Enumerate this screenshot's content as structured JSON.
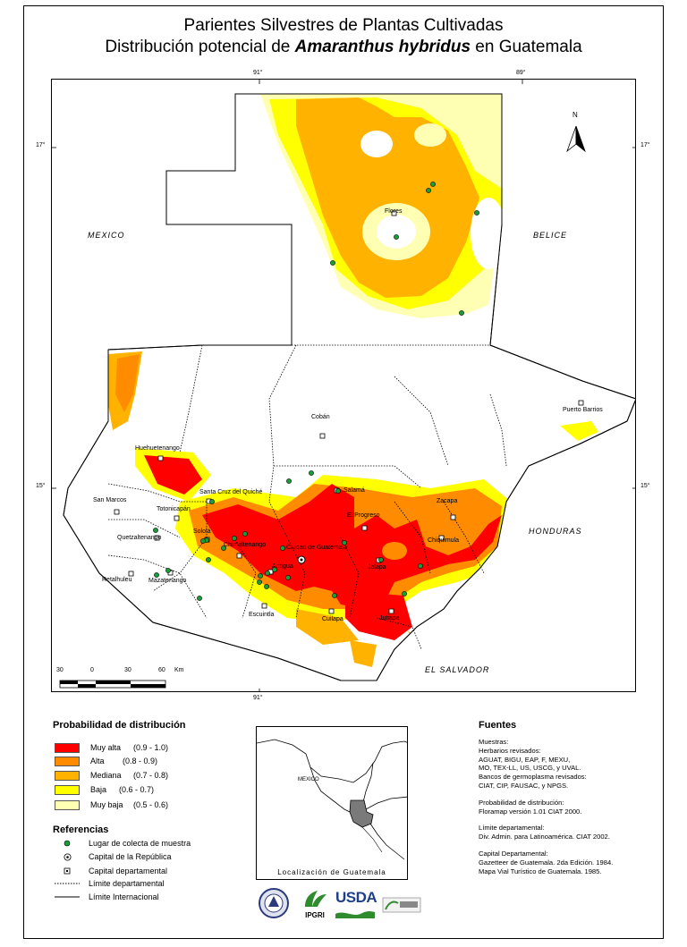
{
  "title": {
    "line1": "Parientes Silvestres de Plantas Cultivadas",
    "line2_prefix": "Distribución potencial de",
    "line2_species": "Amaranthus hybridus",
    "line2_suffix": "en Guatemala"
  },
  "graticule": {
    "lon_top_left": "91°",
    "lon_top_right": "89°",
    "lon_bottom": "91°",
    "lat_upper_left": "17°",
    "lat_upper_right": "17°",
    "lat_lower_left": "15°",
    "lat_lower_right": "15°"
  },
  "countries": {
    "mexico": "MEXICO",
    "belice": "BELICE",
    "honduras": "HONDURAS",
    "el_salvador": "EL SALVADOR"
  },
  "places": {
    "flores": "Flores",
    "coban": "Cobán",
    "puerto_barrios": "Puerto Barrios",
    "huehuetenango": "Huehuetenango",
    "san_marcos": "San Marcos",
    "santa_cruz": "Santa Cruz del Quiché",
    "salama": "Salamá",
    "totonicapan": "Totonicapán",
    "progreso": "El Progreso",
    "zacapa": "Zacapa",
    "quetzaltenango": "Quetzaltenango",
    "solola": "Sololá",
    "chimaltenango": "Chimaltenango",
    "ciudad_guatemala": "Ciudad de Guatemala",
    "chiquimula": "Chiquimula",
    "retalhuleu": "Retalhuleu",
    "mazatenango": "Mazatenango",
    "antigua": "Antigua",
    "jalapa": "Jalapa",
    "escuintla": "Escuintla",
    "cuilapa": "Cuilapa",
    "jutiapa": "Jutiapa"
  },
  "north_arrow": "N",
  "scale_bar": {
    "labels": [
      "30",
      "0",
      "30",
      "60",
      "Km"
    ]
  },
  "legend": {
    "title": "Probabilidad de distribución",
    "classes": [
      {
        "label": "Muy alta",
        "range": "(0.9  -  1.0)",
        "color": "#ff0000"
      },
      {
        "label": "Alta",
        "range": "(0.8  -  0.9)",
        "color": "#ff8c00"
      },
      {
        "label": "Mediana",
        "range": "(0.7  -  0.8)",
        "color": "#ffb300"
      },
      {
        "label": "Baja",
        "range": "(0.6  -  0.7)",
        "color": "#ffff00"
      },
      {
        "label": "Muy baja",
        "range": "(0.5  -  0.6)",
        "color": "#ffffb4"
      }
    ]
  },
  "references": {
    "title": "Referencias",
    "items": [
      {
        "label": "Lugar de colecta de muestra"
      },
      {
        "label": "Capital de la República"
      },
      {
        "label": "Capital departamental"
      },
      {
        "label": "Límite departamental"
      },
      {
        "label": "Límite Internacional"
      }
    ]
  },
  "inset": {
    "mexico": "MEXICO",
    "caption": "Localización de Guatemala"
  },
  "fuentes": {
    "title": "Fuentes",
    "muestras": [
      "Muestras:",
      "Herbarios revisados:",
      "AGUAT, BIGU, EAP, F, MEXU,",
      "MO, TEX-LL, US, USCG, y UVAL.",
      "Bancos de germoplasma revisados:",
      "CIAT, CIP, FAUSAC, y NPGS."
    ],
    "probabilidad": [
      "Probabilidad de distribución:",
      "Floramap versión 1.01 CIAT 2000."
    ],
    "limite": [
      "Límite departamental:",
      "Div. Admin. para Latinoamérica. CIAT 2002."
    ],
    "capital": [
      "Capital Departamental:",
      "Gazetteer de Guatemala. 2da Edición. 1984.",
      "Mapa Vial Turístico de Guatemala. 1985."
    ]
  },
  "logos": {
    "ipgri": "IPGRI",
    "usda": "USDA"
  },
  "colors": {
    "collection_point": "#1a9e3a",
    "very_high": "#ff0000",
    "high": "#ff8c00",
    "medium": "#ffb300",
    "low": "#ffff00",
    "very_low": "#ffffb4"
  }
}
